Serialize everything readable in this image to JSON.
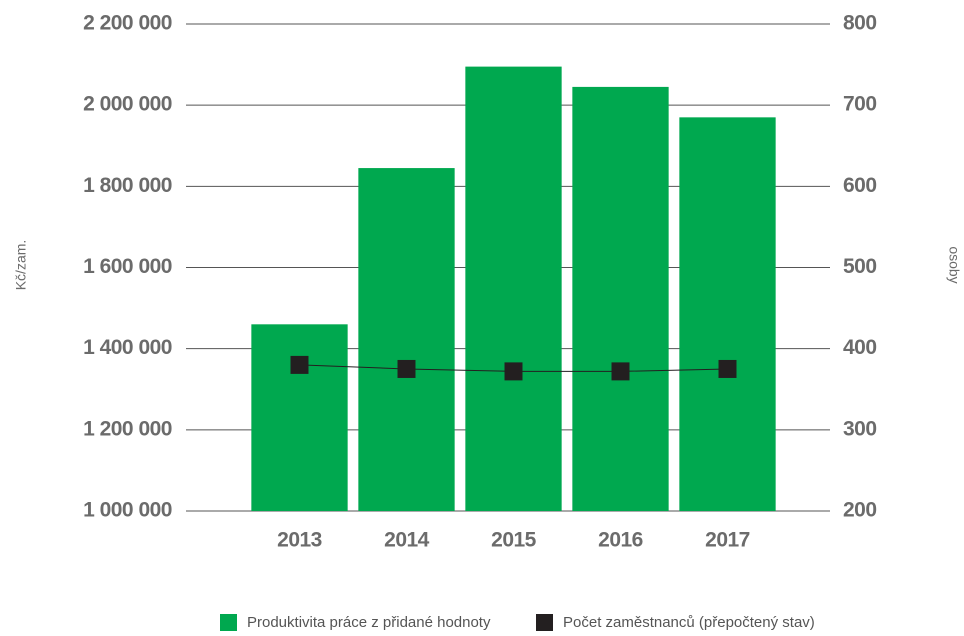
{
  "chart_data": {
    "type": "bar",
    "categories": [
      "2013",
      "2014",
      "2015",
      "2016",
      "2017"
    ],
    "series": [
      {
        "name": "Produktivita práce z přidané hodnoty",
        "color": "#00a84f",
        "type": "bar",
        "values": [
          1460000,
          1845000,
          2095000,
          2045000,
          1970000
        ]
      },
      {
        "name": "Počet zaměstnanců (přepočtený stav)",
        "color": "#231f20",
        "type": "line",
        "axis": "y2",
        "values": [
          380,
          375,
          372,
          372,
          375
        ]
      }
    ],
    "ylabel": "Kč/zam.",
    "y2label": "osoby",
    "ylim": [
      1000000,
      2200000
    ],
    "yticks": [
      {
        "value": 1000000,
        "label": "1 000 000"
      },
      {
        "value": 1200000,
        "label": "1 200 000"
      },
      {
        "value": 1400000,
        "label": "1 400 000"
      },
      {
        "value": 1600000,
        "label": "1 600 000"
      },
      {
        "value": 1800000,
        "label": "1 800 000"
      },
      {
        "value": 2000000,
        "label": "2 000 000"
      },
      {
        "value": 2200000,
        "label": "2 200 000"
      }
    ],
    "y2lim": [
      200,
      800
    ],
    "y2ticks": [
      200,
      300,
      400,
      500,
      600,
      700,
      800
    ],
    "grid": true,
    "legend": "bottom"
  }
}
